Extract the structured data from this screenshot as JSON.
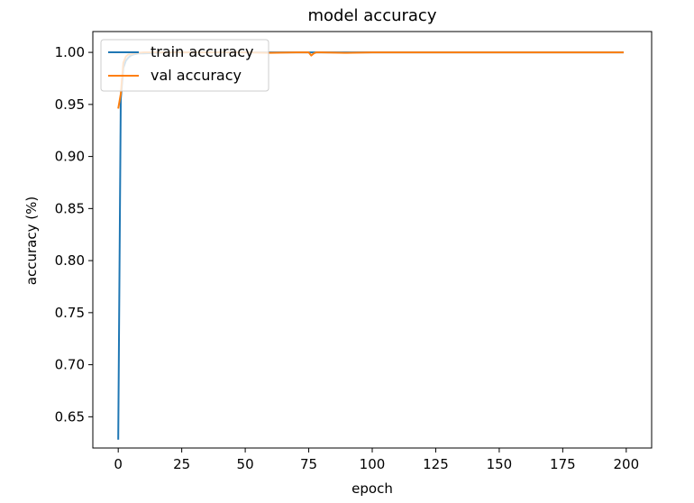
{
  "chart_data": {
    "type": "line",
    "title": "model accuracy",
    "xlabel": "epoch",
    "ylabel": "accuracy (%)",
    "xlim": [
      -10,
      210
    ],
    "ylim": [
      0.62,
      1.02
    ],
    "xticks": [
      0,
      25,
      50,
      75,
      100,
      125,
      150,
      175,
      200
    ],
    "xtick_labels": [
      "0",
      "25",
      "50",
      "75",
      "100",
      "125",
      "150",
      "175",
      "200"
    ],
    "yticks": [
      0.65,
      0.7,
      0.75,
      0.8,
      0.85,
      0.9,
      0.95,
      1.0
    ],
    "ytick_labels": [
      "0.65",
      "0.70",
      "0.75",
      "0.80",
      "0.85",
      "0.90",
      "0.95",
      "1.00"
    ],
    "grid": false,
    "legend_position": "top-left",
    "series": [
      {
        "name": "train accuracy",
        "color": "#1f77b4",
        "x": [
          0,
          1,
          2,
          3,
          4,
          5,
          6,
          8,
          10,
          15,
          20,
          30,
          40,
          50,
          60,
          70,
          80,
          90,
          100,
          120,
          140,
          160,
          180,
          199
        ],
        "y": [
          0.628,
          0.955,
          0.985,
          0.992,
          0.995,
          0.997,
          0.998,
          0.999,
          0.999,
          0.9995,
          1.0,
          1.0,
          1.0,
          1.0,
          1.0,
          1.0,
          1.0,
          1.0,
          1.0,
          1.0,
          1.0,
          1.0,
          1.0,
          1.0
        ]
      },
      {
        "name": "val accuracy",
        "color": "#ff7f0e",
        "x": [
          0,
          1,
          2,
          3,
          4,
          5,
          6,
          8,
          10,
          15,
          20,
          30,
          40,
          50,
          60,
          70,
          75,
          76,
          77,
          78,
          80,
          90,
          100,
          110,
          120,
          130,
          140,
          150,
          160,
          170,
          180,
          190,
          199
        ],
        "y": [
          0.946,
          0.96,
          0.99,
          0.996,
          0.998,
          0.998,
          0.999,
          0.9995,
          1.0,
          1.0,
          1.0,
          1.0,
          1.0,
          1.0,
          0.9995,
          1.0,
          1.0,
          0.997,
          0.999,
          1.0,
          1.0,
          0.9995,
          1.0,
          1.0,
          1.0,
          1.0,
          1.0,
          1.0,
          1.0,
          1.0,
          1.0,
          1.0,
          1.0
        ]
      }
    ]
  }
}
